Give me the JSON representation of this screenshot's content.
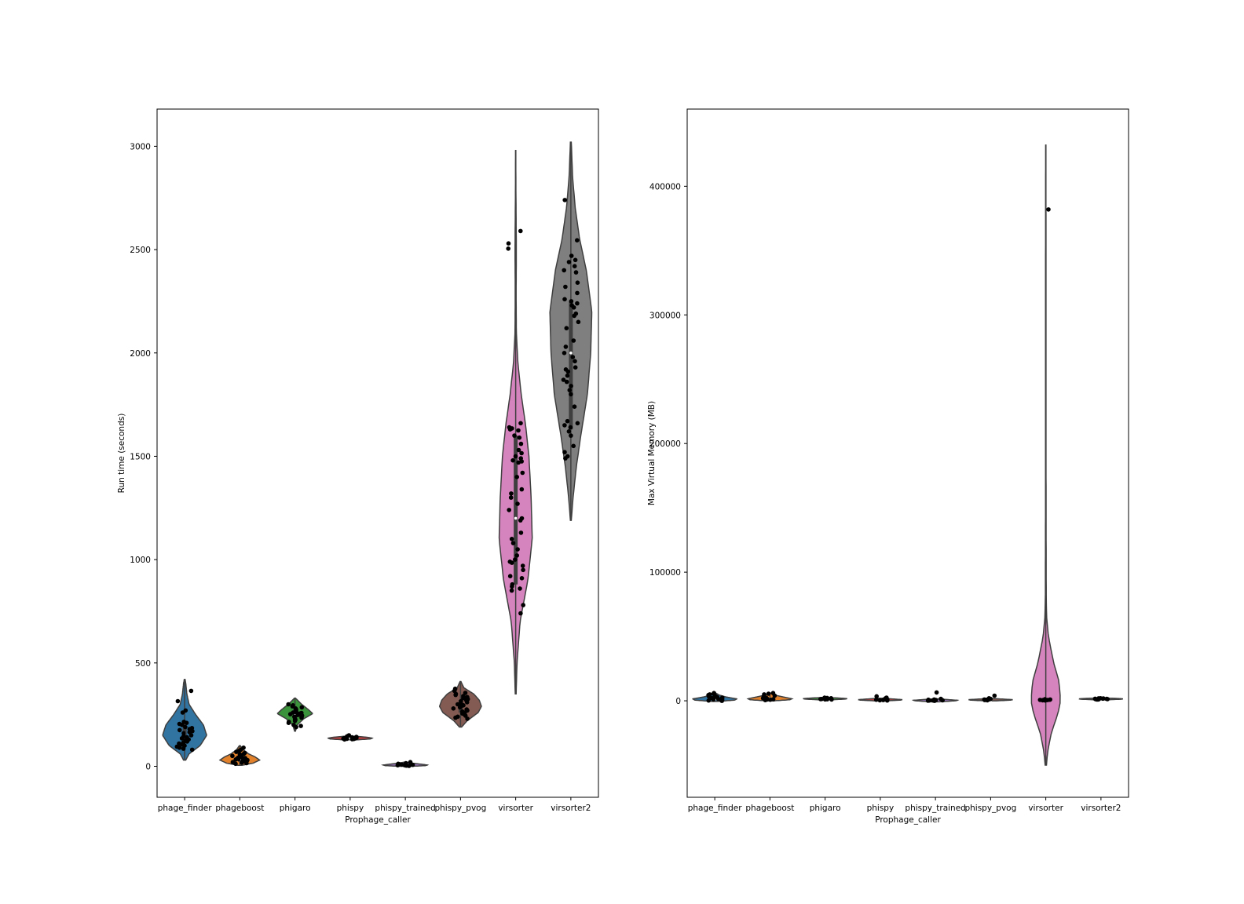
{
  "chart_data": [
    {
      "type": "violin",
      "xlabel": "Prophage_caller",
      "ylabel": "Run time (seconds)",
      "ylim": [
        -150,
        3180
      ],
      "yticks": [
        0,
        500,
        1000,
        1500,
        2000,
        2500,
        3000
      ],
      "categories": [
        "phage_finder",
        "phageboost",
        "phigaro",
        "phispy",
        "phispy_trained",
        "phispy_pvog",
        "virsorter",
        "virsorter2"
      ],
      "colors": [
        "#3274a1",
        "#e1812c",
        "#3a923a",
        "#c03d3e",
        "#9372b2",
        "#845b53",
        "#d684bd",
        "#7f7f7f"
      ],
      "violins": [
        {
          "min": 30,
          "max": 420,
          "q1": 110,
          "median": 160,
          "q3": 200,
          "density": [
            [
              30,
              0.05
            ],
            [
              60,
              0.2
            ],
            [
              100,
              0.7
            ],
            [
              150,
              1.0
            ],
            [
              200,
              0.85
            ],
            [
              250,
              0.5
            ],
            [
              300,
              0.2
            ],
            [
              350,
              0.1
            ],
            [
              400,
              0.05
            ],
            [
              420,
              0.02
            ]
          ]
        },
        {
          "min": 5,
          "max": 100,
          "q1": 22,
          "median": 35,
          "q3": 50,
          "density": [
            [
              5,
              0.1
            ],
            [
              15,
              0.6
            ],
            [
              30,
              0.9
            ],
            [
              45,
              0.7
            ],
            [
              60,
              0.4
            ],
            [
              80,
              0.15
            ],
            [
              100,
              0.02
            ]
          ]
        },
        {
          "min": 170,
          "max": 330,
          "q1": 230,
          "median": 255,
          "q3": 275,
          "density": [
            [
              170,
              0.02
            ],
            [
              200,
              0.1
            ],
            [
              230,
              0.4
            ],
            [
              255,
              0.8
            ],
            [
              275,
              0.6
            ],
            [
              300,
              0.3
            ],
            [
              330,
              0.02
            ]
          ]
        },
        {
          "min": 128,
          "max": 145,
          "q1": 132,
          "median": 136,
          "q3": 140,
          "density": [
            [
              128,
              0.3
            ],
            [
              132,
              0.9
            ],
            [
              136,
              1.0
            ],
            [
              140,
              0.8
            ],
            [
              145,
              0.3
            ]
          ]
        },
        {
          "min": 0,
          "max": 20,
          "q1": 4,
          "median": 6,
          "q3": 8,
          "density": [
            [
              0,
              0.3
            ],
            [
              3,
              0.9
            ],
            [
              6,
              1.0
            ],
            [
              9,
              0.8
            ],
            [
              14,
              0.4
            ],
            [
              20,
              0.05
            ]
          ]
        },
        {
          "min": 190,
          "max": 410,
          "q1": 260,
          "median": 290,
          "q3": 320,
          "density": [
            [
              190,
              0.05
            ],
            [
              220,
              0.3
            ],
            [
              260,
              0.8
            ],
            [
              290,
              0.95
            ],
            [
              320,
              0.85
            ],
            [
              350,
              0.6
            ],
            [
              380,
              0.15
            ],
            [
              410,
              0.02
            ]
          ]
        },
        {
          "min": 350,
          "max": 2980,
          "q1": 880,
          "median": 1200,
          "q3": 1600,
          "density": [
            [
              350,
              0.02
            ],
            [
              500,
              0.06
            ],
            [
              700,
              0.2
            ],
            [
              900,
              0.55
            ],
            [
              1100,
              0.75
            ],
            [
              1300,
              0.7
            ],
            [
              1500,
              0.6
            ],
            [
              1650,
              0.45
            ],
            [
              1800,
              0.25
            ],
            [
              1950,
              0.1
            ],
            [
              2100,
              0.03
            ],
            [
              2300,
              0.02
            ],
            [
              2500,
              0.03
            ],
            [
              2650,
              0.02
            ],
            [
              2800,
              0.01
            ],
            [
              2980,
              0.005
            ]
          ]
        },
        {
          "min": 1190,
          "max": 3020,
          "q1": 1630,
          "median": 2000,
          "q3": 2250,
          "density": [
            [
              1190,
              0.02
            ],
            [
              1300,
              0.1
            ],
            [
              1450,
              0.25
            ],
            [
              1600,
              0.45
            ],
            [
              1800,
              0.75
            ],
            [
              2000,
              0.9
            ],
            [
              2200,
              0.95
            ],
            [
              2400,
              0.7
            ],
            [
              2550,
              0.4
            ],
            [
              2700,
              0.2
            ],
            [
              2850,
              0.08
            ],
            [
              3020,
              0.02
            ]
          ]
        }
      ],
      "points": [
        [
          365,
          315,
          270,
          260,
          215,
          210,
          205,
          200,
          190,
          185,
          180,
          175,
          170,
          165,
          160,
          150,
          145,
          140,
          135,
          130,
          125,
          120,
          115,
          110,
          105,
          100,
          95,
          90,
          85,
          80
        ],
        [
          90,
          80,
          75,
          70,
          65,
          60,
          58,
          55,
          52,
          50,
          48,
          45,
          42,
          40,
          38,
          35,
          33,
          30,
          28,
          25,
          22,
          20,
          18,
          15,
          12
        ],
        [
          300,
          295,
          290,
          285,
          280,
          275,
          270,
          265,
          262,
          260,
          258,
          255,
          252,
          250,
          248,
          245,
          240,
          235,
          230,
          225,
          220,
          215,
          210,
          200,
          195,
          190
        ],
        [
          150,
          145,
          142,
          140,
          138,
          137,
          136,
          135,
          134,
          133,
          132,
          131,
          130
        ],
        [
          20,
          15,
          12,
          10,
          8,
          7,
          6,
          5,
          4,
          3,
          2
        ],
        [
          375,
          365,
          355,
          350,
          345,
          340,
          335,
          330,
          325,
          320,
          315,
          310,
          305,
          300,
          295,
          290,
          285,
          280,
          275,
          270,
          265,
          260,
          255,
          250,
          245,
          240,
          235,
          230
        ],
        [
          2590,
          2530,
          2505,
          1660,
          1640,
          1635,
          1630,
          1625,
          1600,
          1590,
          1560,
          1530,
          1515,
          1500,
          1490,
          1480,
          1475,
          1470,
          1420,
          1400,
          1340,
          1320,
          1300,
          1270,
          1240,
          1200,
          1190,
          1130,
          1100,
          1080,
          1050,
          1020,
          1000,
          990,
          985,
          970,
          950,
          920,
          910,
          880,
          870,
          860,
          850,
          780,
          740
        ],
        [
          2740,
          2545,
          2470,
          2450,
          2440,
          2420,
          2400,
          2390,
          2340,
          2320,
          2290,
          2260,
          2250,
          2240,
          2230,
          2220,
          2190,
          2180,
          2150,
          2120,
          2060,
          2030,
          2000,
          1980,
          1960,
          1930,
          1920,
          1910,
          1890,
          1870,
          1860,
          1840,
          1820,
          1800,
          1740,
          1670,
          1660,
          1650,
          1640,
          1620,
          1600,
          1550,
          1520,
          1500,
          1490
        ]
      ]
    },
    {
      "type": "violin",
      "xlabel": "Prophage_caller",
      "ylabel": "Max Virtual Memory (MB)",
      "ylim": [
        -75000,
        460000
      ],
      "yticks": [
        0,
        100000,
        200000,
        300000,
        400000
      ],
      "categories": [
        "phage_finder",
        "phageboost",
        "phigaro",
        "phispy",
        "phispy_trained",
        "phispy_pvog",
        "virsorter",
        "virsorter2"
      ],
      "colors": [
        "#3274a1",
        "#e1812c",
        "#3a923a",
        "#c03d3e",
        "#9372b2",
        "#845b53",
        "#d684bd",
        "#7f7f7f"
      ],
      "violins": [
        {
          "min": -500,
          "max": 6000,
          "q1": 500,
          "median": 1200,
          "q3": 2500,
          "density": [
            [
              -500,
              0.1
            ],
            [
              500,
              0.9
            ],
            [
              1500,
              1.0
            ],
            [
              3000,
              0.5
            ],
            [
              4500,
              0.2
            ],
            [
              6000,
              0.05
            ]
          ]
        },
        {
          "min": 0,
          "max": 6000,
          "q1": 800,
          "median": 1500,
          "q3": 2500,
          "density": [
            [
              0,
              0.2
            ],
            [
              800,
              0.9
            ],
            [
              1600,
              1.0
            ],
            [
              3000,
              0.6
            ],
            [
              4500,
              0.2
            ],
            [
              6000,
              0.05
            ]
          ]
        },
        {
          "min": 800,
          "max": 2500,
          "q1": 1200,
          "median": 1600,
          "q3": 2000,
          "density": [
            [
              800,
              0.3
            ],
            [
              1300,
              0.9
            ],
            [
              1700,
              1.0
            ],
            [
              2100,
              0.7
            ],
            [
              2500,
              0.2
            ]
          ]
        },
        {
          "min": 0,
          "max": 2000,
          "q1": 400,
          "median": 700,
          "q3": 1000,
          "density": [
            [
              0,
              0.3
            ],
            [
              500,
              0.9
            ],
            [
              900,
              1.0
            ],
            [
              1400,
              0.6
            ],
            [
              2000,
              0.1
            ]
          ]
        },
        {
          "min": -800,
          "max": 1500,
          "q1": 0,
          "median": 300,
          "q3": 600,
          "density": [
            [
              -800,
              0.2
            ],
            [
              0,
              0.9
            ],
            [
              400,
              1.0
            ],
            [
              900,
              0.6
            ],
            [
              1500,
              0.1
            ]
          ]
        },
        {
          "min": 0,
          "max": 1800,
          "q1": 300,
          "median": 600,
          "q3": 900,
          "density": [
            [
              0,
              0.3
            ],
            [
              500,
              0.9
            ],
            [
              900,
              1.0
            ],
            [
              1300,
              0.6
            ],
            [
              1800,
              0.1
            ]
          ]
        },
        {
          "min": -50000,
          "max": 432000,
          "q1": 0,
          "median": 600,
          "q3": 1200,
          "density": [
            [
              -50000,
              0.03
            ],
            [
              -40000,
              0.08
            ],
            [
              -25000,
              0.25
            ],
            [
              -10000,
              0.55
            ],
            [
              0,
              0.67
            ],
            [
              15000,
              0.6
            ],
            [
              30000,
              0.35
            ],
            [
              50000,
              0.12
            ],
            [
              65000,
              0.04
            ],
            [
              80000,
              0.02
            ],
            [
              150000,
              0.012
            ],
            [
              250000,
              0.01
            ],
            [
              350000,
              0.01
            ],
            [
              432000,
              0.005
            ]
          ]
        },
        {
          "min": 800,
          "max": 2200,
          "q1": 1200,
          "median": 1500,
          "q3": 1800,
          "density": [
            [
              800,
              0.3
            ],
            [
              1200,
              0.9
            ],
            [
              1500,
              1.0
            ],
            [
              1800,
              0.8
            ],
            [
              2200,
              0.2
            ]
          ]
        }
      ],
      "points": [
        [
          6000,
          5500,
          5000,
          4500,
          4000,
          3500,
          3000,
          2800,
          2500,
          2200,
          2000,
          1800,
          1500,
          1200,
          1000,
          800,
          600,
          400,
          200,
          0
        ],
        [
          6000,
          5500,
          5000,
          4000,
          3000,
          2500,
          2000,
          1800,
          1500,
          1200,
          1000,
          800,
          500
        ],
        [
          2400,
          2200,
          2000,
          1800,
          1600,
          1500,
          1400,
          1300,
          1200,
          1100,
          1000
        ],
        [
          3500,
          2500,
          1800,
          1200,
          1000,
          800,
          600,
          400,
          200
        ],
        [
          6500,
          1500,
          1000,
          800,
          600,
          400,
          300,
          200,
          100,
          0
        ],
        [
          4000,
          2000,
          1500,
          1200,
          1000,
          800,
          600,
          400
        ],
        [
          382000,
          1200,
          1000,
          900,
          800,
          700,
          600,
          500,
          400,
          300
        ],
        [
          2000,
          1900,
          1800,
          1700,
          1600,
          1500,
          1400,
          1300,
          1200,
          1100,
          1000
        ]
      ]
    }
  ]
}
